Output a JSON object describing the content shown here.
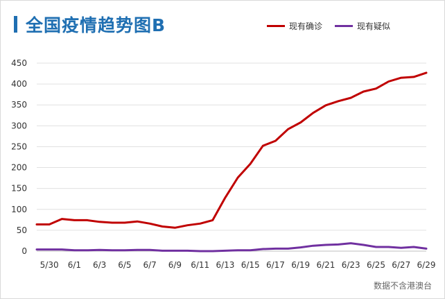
{
  "header": {
    "title": "全国疫情趋势图B",
    "source": "数据不含港澳台"
  },
  "colors": {
    "accent": "#1f6fb2",
    "confirmed": "#c00000",
    "suspected": "#7030a0",
    "grid": "#e0e0e0",
    "axis": "#bfbfbf"
  },
  "chart_data": {
    "type": "line",
    "title": "全国疫情趋势图B",
    "xlabel": "",
    "ylabel": "",
    "ylim": [
      0,
      450
    ],
    "yticks": [
      0,
      50,
      100,
      150,
      200,
      250,
      300,
      350,
      400,
      450
    ],
    "grid": true,
    "legend_position": "top-right",
    "x": [
      "5/29",
      "5/30",
      "5/31",
      "6/1",
      "6/2",
      "6/3",
      "6/4",
      "6/5",
      "6/6",
      "6/7",
      "6/8",
      "6/9",
      "6/10",
      "6/11",
      "6/12",
      "6/13",
      "6/14",
      "6/15",
      "6/16",
      "6/17",
      "6/18",
      "6/19",
      "6/20",
      "6/21",
      "6/22",
      "6/23",
      "6/24",
      "6/25",
      "6/26",
      "6/27",
      "6/28",
      "6/29"
    ],
    "x_tick_labels": [
      "5/30",
      "6/1",
      "6/3",
      "6/5",
      "6/7",
      "6/9",
      "6/11",
      "6/13",
      "6/15",
      "6/17",
      "6/19",
      "6/21",
      "6/23",
      "6/25",
      "6/27",
      "6/29"
    ],
    "series": [
      {
        "name": "现有确诊",
        "color": "#c00000",
        "values": [
          64,
          64,
          77,
          74,
          74,
          70,
          68,
          68,
          71,
          66,
          59,
          56,
          62,
          66,
          74,
          128,
          176,
          209,
          252,
          264,
          292,
          308,
          331,
          349,
          359,
          367,
          382,
          389,
          406,
          415,
          417,
          427
        ]
      },
      {
        "name": "现有疑似",
        "color": "#7030a0",
        "values": [
          4,
          4,
          4,
          2,
          2,
          3,
          2,
          2,
          3,
          3,
          1,
          1,
          1,
          0,
          0,
          1,
          2,
          2,
          5,
          6,
          6,
          9,
          13,
          15,
          16,
          19,
          15,
          10,
          10,
          8,
          10,
          6
        ]
      }
    ]
  }
}
